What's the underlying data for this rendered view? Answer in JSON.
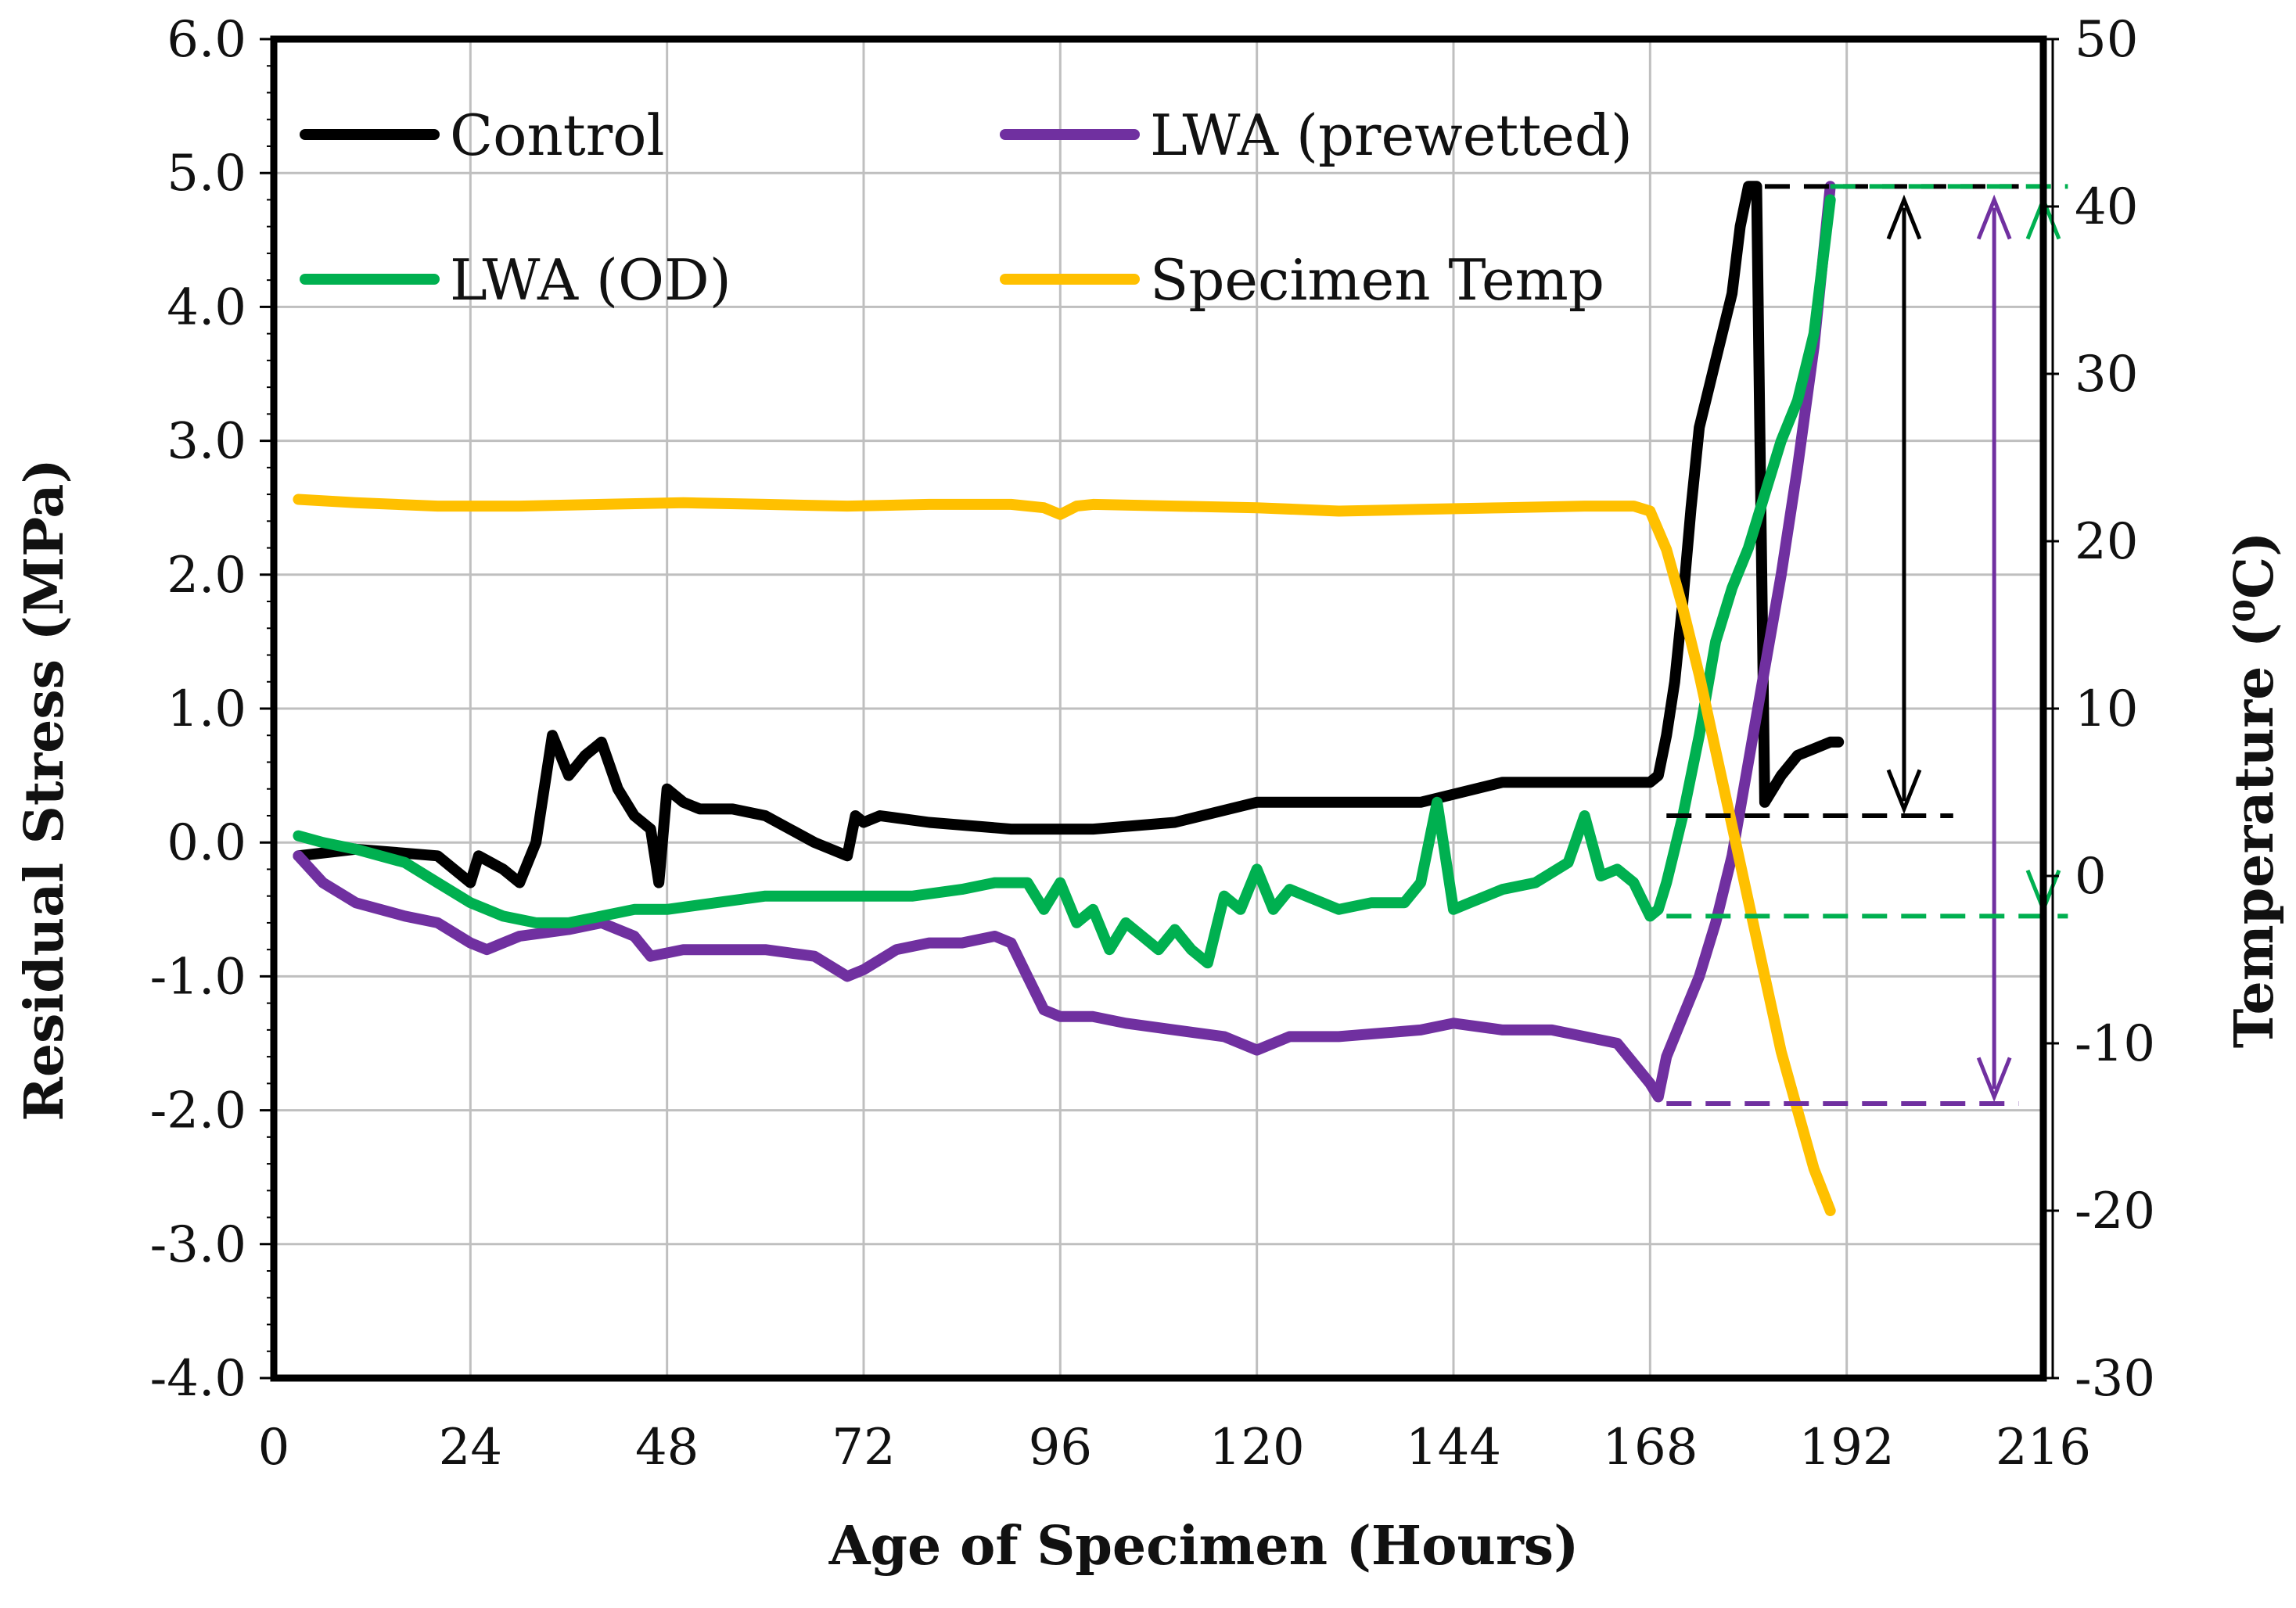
{
  "chart_data": {
    "type": "line",
    "xlabel": "Age of Specimen (Hours)",
    "ylabel": "Residual Stress (MPa)",
    "y2label": "Temperature (⁰C)",
    "xlim": [
      0,
      216
    ],
    "ylim": [
      -4.0,
      6.0
    ],
    "y2lim": [
      -30,
      50
    ],
    "x_ticks": [
      0,
      24,
      48,
      72,
      96,
      120,
      144,
      168,
      192,
      216
    ],
    "x_tick_labels": [
      "0",
      "24",
      "48",
      "72",
      "96",
      "120",
      "144",
      "168",
      "192",
      "216"
    ],
    "y_ticks": [
      -4,
      -3,
      -2,
      -1,
      0,
      1,
      2,
      3,
      4,
      5,
      6
    ],
    "y_tick_labels": [
      "-4.0",
      "-3.0",
      "-2.0",
      "-1.0",
      "0.0",
      "1.0",
      "2.0",
      "3.0",
      "4.0",
      "5.0",
      "6.0"
    ],
    "y2_ticks": [
      -30,
      -20,
      -10,
      0,
      10,
      20,
      30,
      40,
      50
    ],
    "y2_tick_labels": [
      "-30",
      "-20",
      "-10",
      "0",
      "10",
      "20",
      "30",
      "40",
      "50"
    ],
    "grid": true,
    "legend": [
      {
        "label": "Control",
        "color": "#000000"
      },
      {
        "label": "LWA (prewetted)",
        "color": "#7030a0"
      },
      {
        "label": "LWA (OD)",
        "color": "#00b050"
      },
      {
        "label": "Specimen Temp",
        "color": "#ffc000"
      }
    ],
    "series": [
      {
        "name": "Control",
        "axis": "left",
        "color": "#000000",
        "x": [
          3,
          10,
          20,
          24,
          25,
          28,
          30,
          32,
          34,
          36,
          38,
          40,
          42,
          44,
          46,
          47,
          48,
          50,
          52,
          56,
          60,
          66,
          70,
          71,
          72,
          74,
          80,
          90,
          100,
          110,
          120,
          130,
          140,
          150,
          160,
          168,
          169,
          170,
          171,
          172,
          173,
          174,
          176,
          178,
          179,
          180,
          181,
          182,
          183,
          184,
          186,
          188,
          190,
          191
        ],
        "y": [
          -0.1,
          -0.05,
          -0.1,
          -0.3,
          -0.1,
          -0.2,
          -0.3,
          0.0,
          0.8,
          0.5,
          0.65,
          0.75,
          0.4,
          0.2,
          0.1,
          -0.3,
          0.4,
          0.3,
          0.25,
          0.25,
          0.2,
          0.0,
          -0.1,
          0.2,
          0.15,
          0.2,
          0.15,
          0.1,
          0.1,
          0.15,
          0.3,
          0.3,
          0.3,
          0.45,
          0.45,
          0.45,
          0.5,
          0.8,
          1.2,
          1.8,
          2.5,
          3.1,
          3.6,
          4.1,
          4.6,
          4.9,
          4.9,
          0.3,
          0.4,
          0.5,
          0.65,
          0.7,
          0.75,
          0.75
        ]
      },
      {
        "name": "LWA (prewetted)",
        "axis": "left",
        "color": "#7030a0",
        "x": [
          3,
          6,
          10,
          16,
          20,
          24,
          26,
          30,
          36,
          40,
          44,
          46,
          50,
          56,
          60,
          66,
          70,
          72,
          76,
          80,
          84,
          88,
          90,
          92,
          94,
          96,
          100,
          104,
          110,
          116,
          120,
          124,
          130,
          140,
          144,
          150,
          156,
          160,
          164,
          168,
          169,
          170,
          172,
          174,
          176,
          178,
          180,
          182,
          184,
          186,
          188,
          190
        ],
        "y": [
          -0.1,
          -0.3,
          -0.45,
          -0.55,
          -0.6,
          -0.75,
          -0.8,
          -0.7,
          -0.65,
          -0.6,
          -0.7,
          -0.85,
          -0.8,
          -0.8,
          -0.8,
          -0.85,
          -1.0,
          -0.95,
          -0.8,
          -0.75,
          -0.75,
          -0.7,
          -0.75,
          -1.0,
          -1.25,
          -1.3,
          -1.3,
          -1.35,
          -1.4,
          -1.45,
          -1.55,
          -1.45,
          -1.45,
          -1.4,
          -1.35,
          -1.4,
          -1.4,
          -1.45,
          -1.5,
          -1.8,
          -1.9,
          -1.6,
          -1.3,
          -1.0,
          -0.6,
          -0.1,
          0.6,
          1.3,
          2.0,
          2.8,
          3.7,
          4.9
        ]
      },
      {
        "name": "LWA (OD)",
        "axis": "left",
        "color": "#00b050",
        "x": [
          3,
          6,
          10,
          16,
          20,
          24,
          28,
          32,
          36,
          40,
          44,
          48,
          54,
          60,
          66,
          72,
          78,
          84,
          88,
          92,
          94,
          96,
          98,
          100,
          102,
          104,
          106,
          108,
          110,
          112,
          114,
          116,
          118,
          120,
          122,
          124,
          126,
          128,
          130,
          134,
          138,
          140,
          142,
          144,
          146,
          150,
          154,
          158,
          160,
          162,
          164,
          166,
          168,
          169,
          170,
          172,
          174,
          176,
          178,
          180,
          182,
          184,
          186,
          188,
          190
        ],
        "y": [
          0.05,
          0.0,
          -0.05,
          -0.15,
          -0.3,
          -0.45,
          -0.55,
          -0.6,
          -0.6,
          -0.55,
          -0.5,
          -0.5,
          -0.45,
          -0.4,
          -0.4,
          -0.4,
          -0.4,
          -0.35,
          -0.3,
          -0.3,
          -0.5,
          -0.3,
          -0.6,
          -0.5,
          -0.8,
          -0.6,
          -0.7,
          -0.8,
          -0.65,
          -0.8,
          -0.9,
          -0.4,
          -0.5,
          -0.2,
          -0.5,
          -0.35,
          -0.4,
          -0.45,
          -0.5,
          -0.45,
          -0.45,
          -0.3,
          0.3,
          -0.5,
          -0.45,
          -0.35,
          -0.3,
          -0.15,
          0.2,
          -0.25,
          -0.2,
          -0.3,
          -0.55,
          -0.5,
          -0.3,
          0.2,
          0.8,
          1.5,
          1.9,
          2.2,
          2.6,
          3.0,
          3.3,
          3.8,
          4.8
        ]
      },
      {
        "name": "Specimen Temp",
        "axis": "right",
        "color": "#ffc000",
        "x": [
          3,
          10,
          20,
          30,
          40,
          50,
          60,
          70,
          80,
          90,
          94,
          96,
          98,
          100,
          110,
          120,
          130,
          140,
          150,
          160,
          166,
          168,
          170,
          172,
          174,
          176,
          178,
          180,
          182,
          184,
          186,
          188,
          190
        ],
        "y": [
          22.5,
          22.3,
          22.1,
          22.1,
          22.2,
          22.3,
          22.2,
          22.1,
          22.2,
          22.2,
          22.0,
          21.6,
          22.1,
          22.2,
          22.1,
          22.0,
          21.8,
          21.9,
          22.0,
          22.1,
          22.1,
          21.8,
          19.5,
          16.0,
          12.0,
          7.5,
          3.0,
          -1.5,
          -6.0,
          -10.5,
          -14.0,
          -17.5,
          -20.0
        ]
      }
    ],
    "annotations": [
      {
        "type": "dashed-line",
        "color": "#000000",
        "from": [
          182,
          4.9
        ],
        "to": [
          213,
          4.9
        ]
      },
      {
        "type": "dashed-line",
        "color": "#000000",
        "from": [
          170,
          0.2
        ],
        "to": [
          205,
          0.2
        ]
      },
      {
        "type": "double-arrow",
        "color": "#000000",
        "x": 199,
        "from": 0.25,
        "to": 4.8
      },
      {
        "type": "dashed-line",
        "color": "#7030a0",
        "from": [
          170,
          -1.95
        ],
        "to": [
          213,
          -1.95
        ]
      },
      {
        "type": "double-arrow",
        "color": "#7030a0",
        "x": 210,
        "from": -1.9,
        "to": 4.8
      },
      {
        "type": "dashed-line",
        "color": "#00b050",
        "from": [
          170,
          -0.55
        ],
        "to": [
          219,
          -0.55
        ]
      },
      {
        "type": "dashed-line",
        "color": "#00b050",
        "from": [
          190,
          4.9
        ],
        "to": [
          219,
          4.9
        ]
      },
      {
        "type": "double-arrow",
        "color": "#00b050",
        "x": 216,
        "from": -0.5,
        "to": 4.8
      }
    ]
  }
}
